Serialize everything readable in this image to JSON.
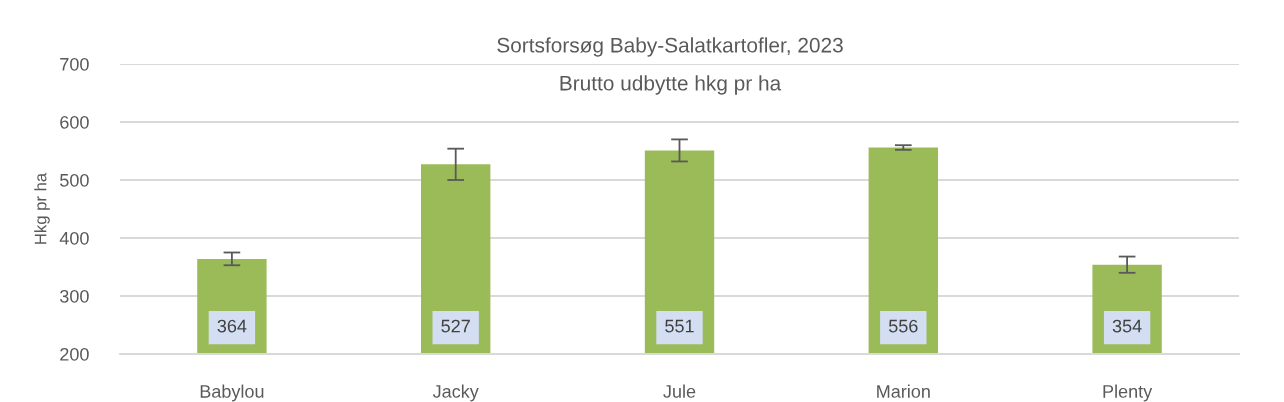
{
  "chart_data": {
    "type": "bar",
    "title": "Sortsforsøg Baby-Salatkartofler, 2023",
    "subtitle": "Brutto udbytte hkg pr ha",
    "ylabel": "Hkg pr ha",
    "categories": [
      "Babylou",
      "Jacky",
      "Jule",
      "Marion",
      "Plenty"
    ],
    "values": [
      364,
      527,
      551,
      556,
      354
    ],
    "errors": [
      11,
      27,
      19,
      4,
      14
    ],
    "color": "#9bbb59",
    "ylim": [
      200,
      700
    ],
    "yticks": [
      200,
      300,
      400,
      500,
      600,
      700
    ],
    "grid": "y",
    "data_labels": true
  }
}
